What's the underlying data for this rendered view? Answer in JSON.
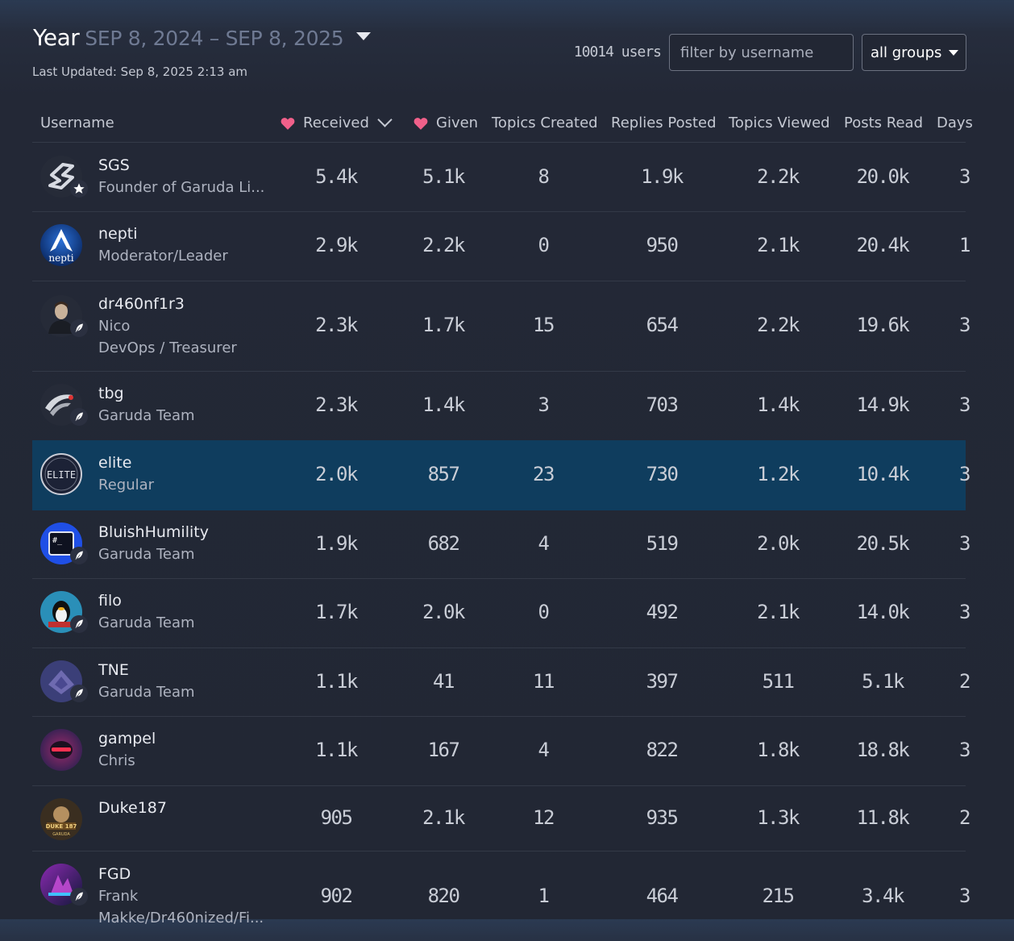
{
  "header": {
    "period_name": "Year",
    "period_range": "SEP 8, 2024 – SEP 8, 2025",
    "last_updated": "Last Updated: Sep 8, 2025 2:13 am"
  },
  "controls": {
    "user_count": "10014 users",
    "filter_placeholder": "filter by username",
    "group_select": "all groups"
  },
  "colors": {
    "heart": "#f0608a",
    "highlight_row": "#0f3d5e",
    "accent": "#ffffff"
  },
  "columns": {
    "username": "Username",
    "received": "Received",
    "given": "Given",
    "topics_created": "Topics Created",
    "replies_posted": "Replies Posted",
    "topics_viewed": "Topics Viewed",
    "posts_read": "Posts Read",
    "days": "Days"
  },
  "rows": [
    {
      "username": "SGS",
      "lines": [
        "Founder of Garuda Li..."
      ],
      "received": "5.4k",
      "given": "5.1k",
      "topics": "8",
      "replies": "1.9k",
      "viewed": "2.2k",
      "read": "20.0k",
      "days": "3",
      "flair": "star-icon"
    },
    {
      "username": "nepti",
      "lines": [
        "Moderator/Leader"
      ],
      "received": "2.9k",
      "given": "2.2k",
      "topics": "0",
      "replies": "950",
      "viewed": "2.1k",
      "read": "20.4k",
      "days": "1",
      "flair": ""
    },
    {
      "username": "dr460nf1r3",
      "lines": [
        "Nico",
        "DevOps / Treasurer"
      ],
      "received": "2.3k",
      "given": "1.7k",
      "topics": "15",
      "replies": "654",
      "viewed": "2.2k",
      "read": "19.6k",
      "days": "3",
      "flair": "feather-icon"
    },
    {
      "username": "tbg",
      "lines": [
        "Garuda Team"
      ],
      "received": "2.3k",
      "given": "1.4k",
      "topics": "3",
      "replies": "703",
      "viewed": "1.4k",
      "read": "14.9k",
      "days": "3",
      "flair": "feather-icon"
    },
    {
      "username": "elite",
      "lines": [
        "Regular"
      ],
      "received": "2.0k",
      "given": "857",
      "topics": "23",
      "replies": "730",
      "viewed": "1.2k",
      "read": "10.4k",
      "days": "3",
      "flair": ""
    },
    {
      "username": "BluishHumility",
      "lines": [
        "Garuda Team"
      ],
      "received": "1.9k",
      "given": "682",
      "topics": "4",
      "replies": "519",
      "viewed": "2.0k",
      "read": "20.5k",
      "days": "3",
      "flair": "feather-icon"
    },
    {
      "username": "filo",
      "lines": [
        "Garuda Team"
      ],
      "received": "1.7k",
      "given": "2.0k",
      "topics": "0",
      "replies": "492",
      "viewed": "2.1k",
      "read": "14.0k",
      "days": "3",
      "flair": "feather-icon"
    },
    {
      "username": "TNE",
      "lines": [
        "Garuda Team"
      ],
      "received": "1.1k",
      "given": "41",
      "topics": "11",
      "replies": "397",
      "viewed": "511",
      "read": "5.1k",
      "days": "2",
      "flair": "feather-icon"
    },
    {
      "username": "gampel",
      "lines": [
        "Chris"
      ],
      "received": "1.1k",
      "given": "167",
      "topics": "4",
      "replies": "822",
      "viewed": "1.8k",
      "read": "18.8k",
      "days": "3",
      "flair": ""
    },
    {
      "username": "Duke187",
      "lines": [],
      "received": "905",
      "given": "2.1k",
      "topics": "12",
      "replies": "935",
      "viewed": "1.3k",
      "read": "11.8k",
      "days": "2",
      "flair": ""
    },
    {
      "username": "FGD",
      "lines": [
        "Frank",
        "Makke/Dr460nized/Fi..."
      ],
      "received": "902",
      "given": "820",
      "topics": "1",
      "replies": "464",
      "viewed": "215",
      "read": "3.4k",
      "days": "3",
      "flair": "feather-icon"
    }
  ],
  "avatar_texts": {
    "nepti": "nepti",
    "elite": "ELITE",
    "bluish": "#_",
    "duke": "DUKE 187",
    "duke_sub": "GARUDA"
  }
}
